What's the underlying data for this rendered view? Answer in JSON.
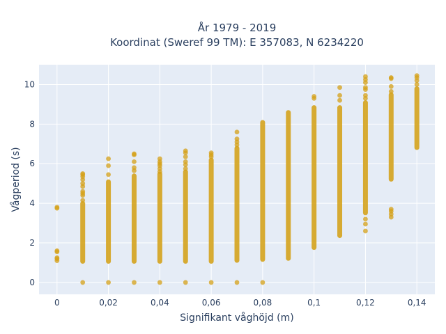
{
  "chart_data": {
    "type": "scatter",
    "title": "År 1979 - 2019",
    "subtitle": "Koordinat (Sweref 99 TM): E 357083, N 6234220",
    "xlabel": "Signifikant våghöjd (m)",
    "ylabel": "Vågperiod (s)",
    "xlim": [
      -0.007,
      0.147
    ],
    "ylim": [
      -0.6,
      11.0
    ],
    "x_ticks": [
      0,
      0.02,
      0.04,
      0.06,
      0.08,
      0.1,
      0.12,
      0.14
    ],
    "x_tick_labels": [
      "0",
      "0,02",
      "0,04",
      "0,06",
      "0,08",
      "0,1",
      "0,12",
      "0,14"
    ],
    "y_ticks": [
      0,
      2,
      4,
      6,
      8,
      10
    ],
    "y_tick_labels": [
      "0",
      "2",
      "4",
      "6",
      "8",
      "10"
    ],
    "grid": true,
    "legend": "none",
    "marker_color": "#d4a017",
    "columns": [
      {
        "x": 0,
        "low": null,
        "high": null,
        "outliers": [
          1.1,
          1.2,
          1.25,
          1.55,
          1.6,
          3.75,
          3.8
        ]
      },
      {
        "x": 0.01,
        "low": 1.05,
        "high": 4.0,
        "outliers": [
          0,
          4.15,
          4.4,
          4.5,
          4.6,
          4.85,
          5.0,
          5.2,
          5.35,
          5.45,
          5.5
        ]
      },
      {
        "x": 0.02,
        "low": 1.05,
        "high": 5.1,
        "outliers": [
          0,
          5.45,
          5.9,
          6.25
        ]
      },
      {
        "x": 0.03,
        "low": 1.05,
        "high": 5.4,
        "outliers": [
          0,
          5.65,
          5.8,
          6.1,
          6.45,
          6.5
        ]
      },
      {
        "x": 0.04,
        "low": 1.05,
        "high": 5.5,
        "outliers": [
          0,
          5.6,
          5.75,
          5.9,
          6.0,
          6.1,
          6.25
        ]
      },
      {
        "x": 0.05,
        "low": 1.05,
        "high": 5.6,
        "outliers": [
          0,
          5.75,
          5.95,
          6.1,
          6.35,
          6.55,
          6.65
        ]
      },
      {
        "x": 0.06,
        "low": 1.05,
        "high": 6.2,
        "outliers": [
          0,
          6.35,
          6.45,
          6.55
        ]
      },
      {
        "x": 0.07,
        "low": 1.1,
        "high": 6.8,
        "outliers": [
          0,
          6.95,
          7.1,
          7.25,
          7.6
        ]
      },
      {
        "x": 0.08,
        "low": 1.15,
        "high": 8.1,
        "outliers": [
          0
        ]
      },
      {
        "x": 0.09,
        "low": 1.2,
        "high": 8.6,
        "outliers": []
      },
      {
        "x": 0.1,
        "low": 1.75,
        "high": 8.85,
        "outliers": [
          9.3,
          9.4
        ]
      },
      {
        "x": 0.11,
        "low": 2.35,
        "high": 8.85,
        "outliers": [
          9.2,
          9.45,
          9.85
        ]
      },
      {
        "x": 0.12,
        "low": 3.5,
        "high": 9.1,
        "outliers": [
          2.6,
          2.95,
          3.2,
          9.3,
          9.45,
          9.75,
          9.85,
          10.1,
          10.25,
          10.4
        ]
      },
      {
        "x": 0.13,
        "low": 5.2,
        "high": 9.5,
        "outliers": [
          3.3,
          3.45,
          3.6,
          3.7,
          9.65,
          9.9,
          10.3,
          10.35
        ]
      },
      {
        "x": 0.14,
        "low": 6.8,
        "high": 9.8,
        "outliers": [
          10.0,
          10.2,
          10.35,
          10.45
        ]
      }
    ]
  }
}
